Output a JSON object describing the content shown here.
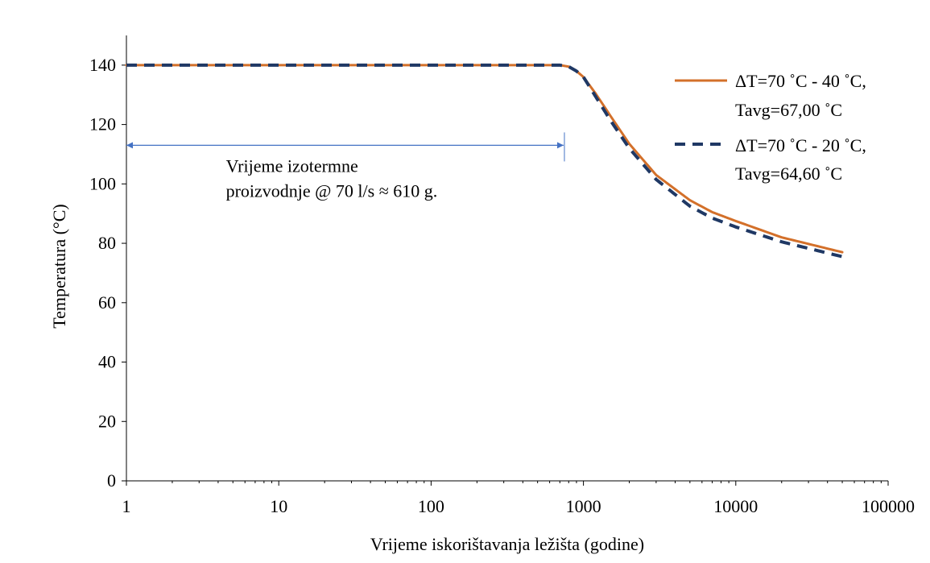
{
  "chart_data": {
    "type": "line",
    "title": "",
    "xlabel": "Vrijeme iskorištavanja ležišta (godine)",
    "ylabel": "Temperatura (°C)",
    "xscale": "log",
    "xlim": [
      1,
      100000
    ],
    "ylim": [
      0,
      150
    ],
    "x_ticks": [
      1,
      10,
      100,
      1000,
      10000,
      100000
    ],
    "x_tick_labels": [
      "1",
      "10",
      "100",
      "1000",
      "10000",
      "100000"
    ],
    "y_ticks": [
      0,
      20,
      40,
      60,
      80,
      100,
      120,
      140
    ],
    "y_tick_labels": [
      "0",
      "20",
      "40",
      "60",
      "80",
      "100",
      "120",
      "140"
    ],
    "grid": false,
    "legend_position": "top-right",
    "series": [
      {
        "name": "ΔT=70 ˚C - 40 ˚C, Tavg=67,00 ˚C",
        "legend_lines": [
          "ΔT=70 ˚C - 40 ˚C,",
          "Tavg=67,00 ˚C"
        ],
        "color": "#d3702a",
        "style": "solid",
        "points": [
          [
            1,
            140
          ],
          [
            10,
            140
          ],
          [
            100,
            140
          ],
          [
            700,
            140
          ],
          [
            800,
            139.5
          ],
          [
            900,
            138
          ],
          [
            1000,
            136
          ],
          [
            1200,
            130.5
          ],
          [
            1500,
            123
          ],
          [
            2000,
            113.5
          ],
          [
            3000,
            103
          ],
          [
            5000,
            94.5
          ],
          [
            7000,
            90.5
          ],
          [
            10000,
            87.5
          ],
          [
            20000,
            82
          ],
          [
            50000,
            77
          ]
        ]
      },
      {
        "name": "ΔT=70 ˚C - 20 ˚C, Tavg=64,60 ˚C",
        "legend_lines": [
          "ΔT=70 ˚C - 20 ˚C,",
          "Tavg=64,60 ˚C"
        ],
        "color": "#1f3864",
        "style": "dashed",
        "points": [
          [
            1,
            140
          ],
          [
            10,
            140
          ],
          [
            100,
            140
          ],
          [
            700,
            140
          ],
          [
            800,
            139.5
          ],
          [
            900,
            138
          ],
          [
            1000,
            136
          ],
          [
            1200,
            129.5
          ],
          [
            1500,
            121.5
          ],
          [
            2000,
            112
          ],
          [
            3000,
            101.5
          ],
          [
            5000,
            92.5
          ],
          [
            7000,
            88.5
          ],
          [
            10000,
            85.5
          ],
          [
            20000,
            80.5
          ],
          [
            50000,
            75.5
          ]
        ]
      }
    ],
    "annotations": [
      {
        "type": "double-arrow",
        "color": "#4472c4",
        "x_start": 1,
        "x_end": 750,
        "y": 113
      },
      {
        "type": "text",
        "lines": [
          "Vrijeme izotermne",
          "proizvodnje @ 70 l/s ≈ 610 g."
        ],
        "x": 4.5,
        "y": 104
      }
    ]
  }
}
